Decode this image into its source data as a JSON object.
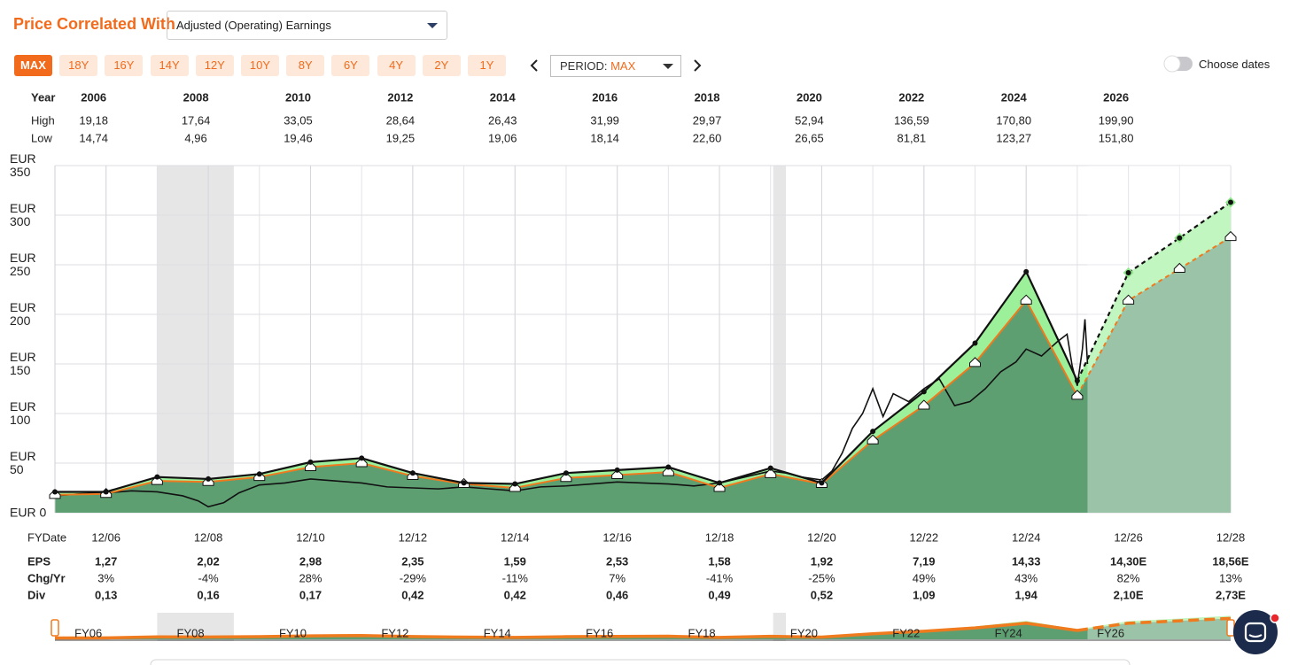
{
  "header": {
    "title": "Price Correlated With",
    "metric": "Adjusted (Operating) Earnings"
  },
  "period_buttons": [
    "MAX",
    "18Y",
    "16Y",
    "14Y",
    "12Y",
    "10Y",
    "8Y",
    "6Y",
    "4Y",
    "2Y",
    "1Y"
  ],
  "period": {
    "label": "PERIOD:",
    "value": "MAX"
  },
  "date_toggle": "Choose dates",
  "price_table": {
    "header": "Year",
    "years": [
      "2006",
      "2008",
      "2010",
      "2012",
      "2014",
      "2016",
      "2018",
      "2020",
      "2022",
      "2024",
      "2026"
    ],
    "rows": [
      {
        "label": "High",
        "cells": [
          "19,18",
          "17,64",
          "33,05",
          "28,64",
          "26,43",
          "31,99",
          "29,97",
          "52,94",
          "136,59",
          "170,80",
          "199,90"
        ]
      },
      {
        "label": "Low",
        "cells": [
          "14,74",
          "4,96",
          "19,46",
          "19,25",
          "19,06",
          "18,14",
          "22,60",
          "26,65",
          "81,81",
          "123,27",
          "151,80"
        ]
      }
    ]
  },
  "chart_data": {
    "type": "line",
    "x": [
      2005,
      2006,
      2007,
      2008,
      2009,
      2010,
      2011,
      2012,
      2013,
      2014,
      2015,
      2016,
      2017,
      2018,
      2019,
      2020,
      2021,
      2022,
      2023,
      2024,
      2025,
      2026,
      2027,
      2028
    ],
    "xlim": [
      2005,
      2028
    ],
    "xticks": [
      {
        "value": 2006,
        "label": "12/06"
      },
      {
        "value": 2008,
        "label": "12/08"
      },
      {
        "value": 2010,
        "label": "12/10"
      },
      {
        "value": 2012,
        "label": "12/12"
      },
      {
        "value": 2014,
        "label": "12/14"
      },
      {
        "value": 2016,
        "label": "12/16"
      },
      {
        "value": 2018,
        "label": "12/18"
      },
      {
        "value": 2020,
        "label": "12/20"
      },
      {
        "value": 2022,
        "label": "12/22"
      },
      {
        "value": 2024,
        "label": "12/24"
      },
      {
        "value": 2026,
        "label": "12/26"
      },
      {
        "value": 2028,
        "label": "12/28"
      }
    ],
    "ylim": [
      0,
      350
    ],
    "yticks": [
      {
        "value": 0,
        "label": "EUR 0"
      },
      {
        "value": 50,
        "label": "EUR 50"
      },
      {
        "value": 100,
        "label": "EUR 100"
      },
      {
        "value": 150,
        "label": "EUR 150"
      },
      {
        "value": 200,
        "label": "EUR 200"
      },
      {
        "value": 250,
        "label": "EUR 250"
      },
      {
        "value": 300,
        "label": "EUR 300"
      },
      {
        "value": 350,
        "label": "EUR 350"
      }
    ],
    "grid": true,
    "series": [
      {
        "color": "#111111",
        "fill": "#9df09a",
        "values": [
          21,
          21,
          36,
          34,
          39,
          51,
          55,
          40,
          30,
          29,
          40,
          43,
          46,
          30,
          45,
          30,
          82,
          122,
          171,
          243,
          133,
          242,
          277,
          313
        ]
      },
      {
        "color": "#f07a1e",
        "fill": "#5e9f72",
        "values": [
          18,
          19,
          32,
          31,
          36,
          46,
          50,
          37,
          29,
          25,
          35,
          38,
          41,
          25,
          39,
          29,
          73,
          108,
          151,
          214,
          118,
          214,
          246,
          278
        ]
      },
      {
        "color": "#111111",
        "x": [
          2005,
          2005.5,
          2006,
          2006.5,
          2007,
          2007.5,
          2007.8,
          2008,
          2008.3,
          2008.6,
          2009,
          2009.5,
          2010,
          2010.5,
          2011,
          2011.5,
          2012,
          2012.5,
          2013,
          2013.5,
          2014,
          2014.5,
          2015,
          2015.5,
          2016,
          2016.5,
          2017,
          2017.5,
          2018,
          2018.5,
          2019,
          2019.3,
          2019.6,
          2020,
          2020.2,
          2020.4,
          2020.6,
          2020.8,
          2021,
          2021.2,
          2021.4,
          2021.7,
          2022,
          2022.3,
          2022.6,
          2022.9,
          2023.2,
          2023.5,
          2023.8,
          2024,
          2024.3,
          2024.6,
          2024.8,
          2024.9,
          2025,
          2025.1,
          2025.15,
          2025.2
        ],
        "values": [
          17,
          19,
          20,
          22,
          21,
          17,
          12,
          6,
          10,
          20,
          28,
          30,
          34,
          32,
          30,
          26,
          25,
          24,
          26,
          24,
          22,
          26,
          27,
          29,
          31,
          30,
          29,
          27,
          30,
          36,
          42,
          40,
          36,
          33,
          42,
          60,
          85,
          100,
          125,
          97,
          120,
          112,
          125,
          135,
          108,
          112,
          125,
          142,
          152,
          165,
          158,
          172,
          180,
          148,
          128,
          165,
          195,
          150
        ]
      }
    ]
  },
  "fy_table": {
    "header": "FYDate",
    "rows": [
      {
        "label": "EPS",
        "cells": [
          "1,27",
          "2,02",
          "2,98",
          "2,35",
          "1,59",
          "2,53",
          "1,58",
          "1,92",
          "7,19",
          "14,33",
          "14,30E",
          "18,56E"
        ]
      },
      {
        "label": "Chg/Yr",
        "cells": [
          "3%",
          "-4%",
          "28%",
          "-29%",
          "-11%",
          "7%",
          "-41%",
          "-25%",
          "49%",
          "43%",
          "82%",
          "13%"
        ]
      },
      {
        "label": "Div",
        "cells": [
          "0,13",
          "0,16",
          "0,17",
          "0,42",
          "0,42",
          "0,46",
          "0,49",
          "0,52",
          "1,09",
          "1,94",
          "2,10E",
          "2,73E"
        ]
      }
    ]
  },
  "navigator": {
    "labels": [
      "FY06",
      "FY08",
      "FY10",
      "FY12",
      "FY14",
      "FY16",
      "FY18",
      "FY20",
      "FY22",
      "FY24",
      "FY26"
    ]
  }
}
